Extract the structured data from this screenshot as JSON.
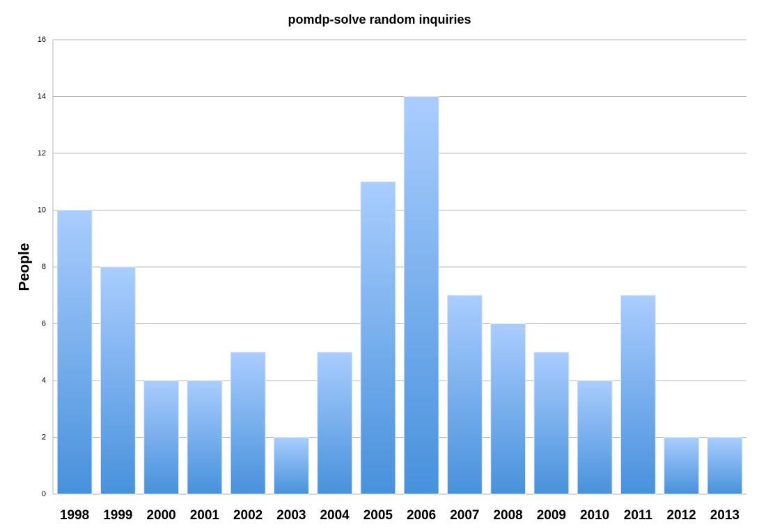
{
  "chart_data": {
    "type": "bar",
    "title": "pomdp-solve random inquiries",
    "y_label": "People",
    "categories": [
      "1998",
      "1999",
      "2000",
      "2001",
      "2002",
      "2003",
      "2004",
      "2005",
      "2006",
      "2007",
      "2008",
      "2009",
      "2010",
      "2011",
      "2012",
      "2013"
    ],
    "values": [
      10,
      8,
      4,
      4,
      5,
      2,
      5,
      11,
      14,
      7,
      6,
      5,
      4,
      7,
      2,
      2
    ],
    "color": [
      "#aacdfe",
      "#4791dc"
    ],
    "ylim": [
      0,
      16
    ],
    "yticks": [
      0,
      2,
      4,
      6,
      8,
      10,
      12,
      14,
      16
    ],
    "grid": true
  }
}
